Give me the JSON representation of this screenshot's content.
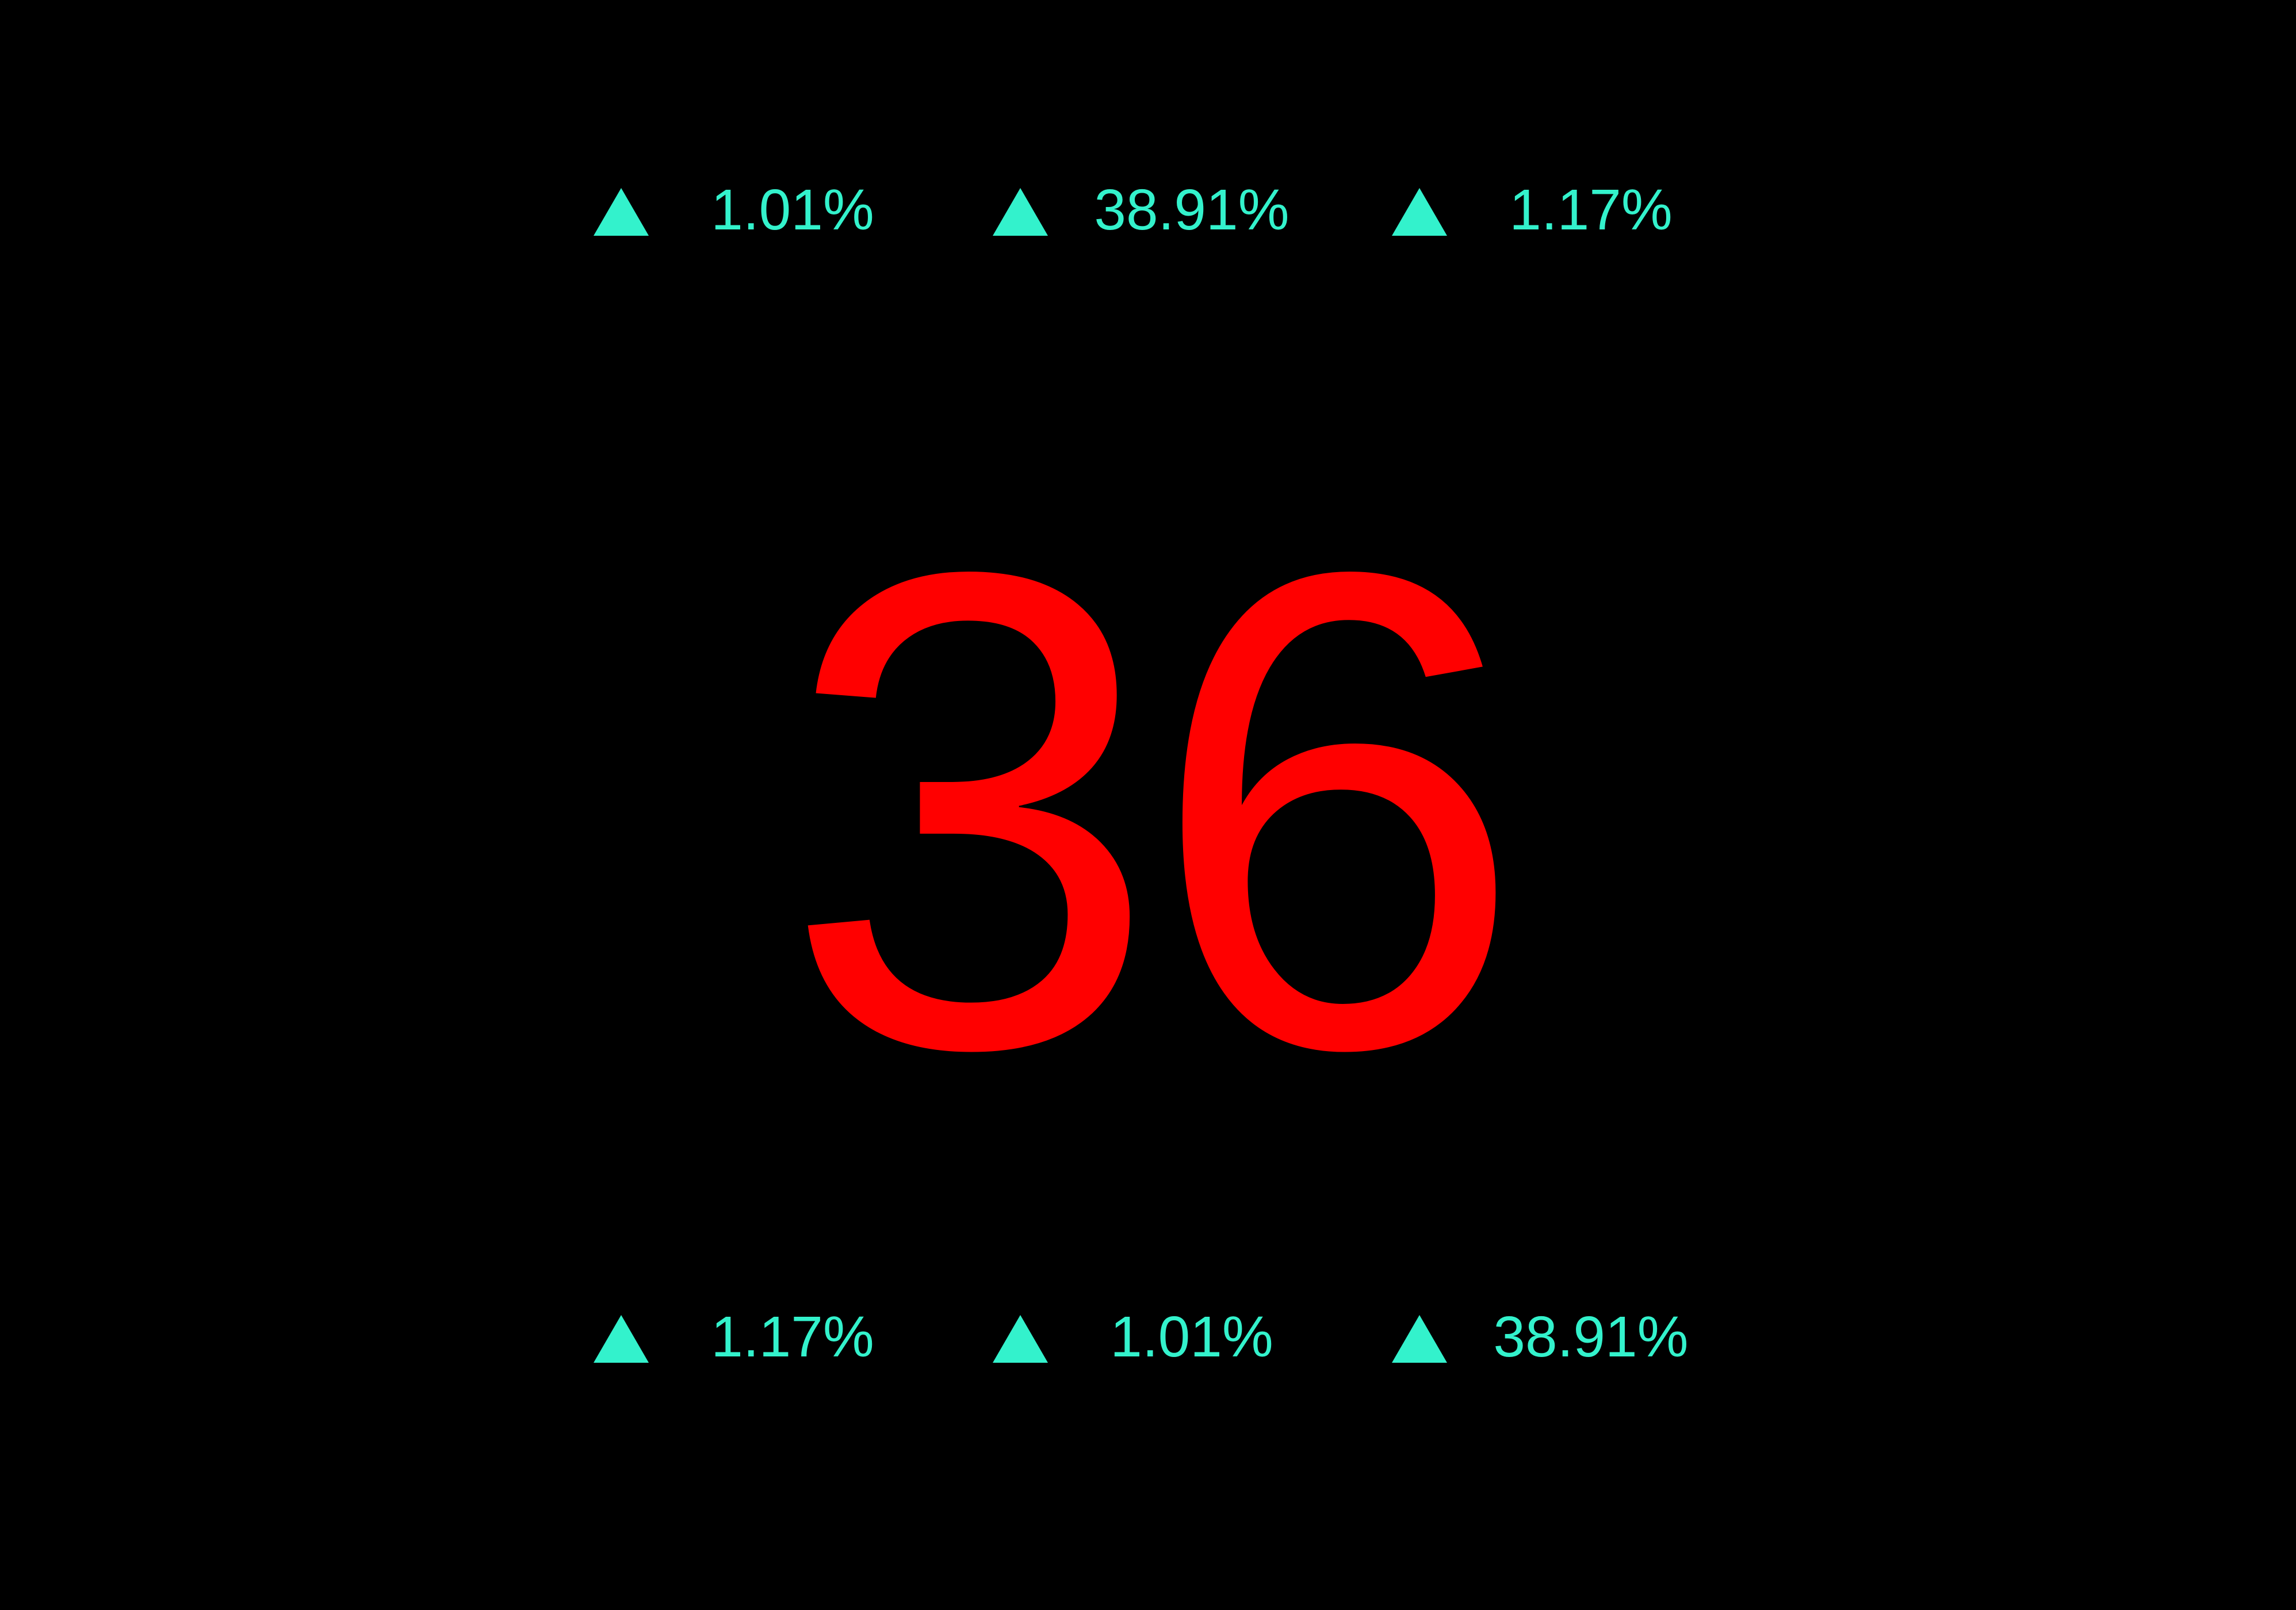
{
  "colors": {
    "background": "#000000",
    "value": "#ff0000",
    "change_up": "#33f2cc"
  },
  "main_value": "36",
  "top_changes": [
    {
      "icon": "triangle-up-icon",
      "value": "1.01%"
    },
    {
      "icon": "triangle-up-icon",
      "value": "38.91%"
    },
    {
      "icon": "triangle-up-icon",
      "value": "1.17%"
    }
  ],
  "bottom_changes": [
    {
      "icon": "triangle-up-icon",
      "value": "1.17%"
    },
    {
      "icon": "triangle-up-icon",
      "value": "1.01%"
    },
    {
      "icon": "triangle-up-icon",
      "value": "38.91%"
    }
  ]
}
